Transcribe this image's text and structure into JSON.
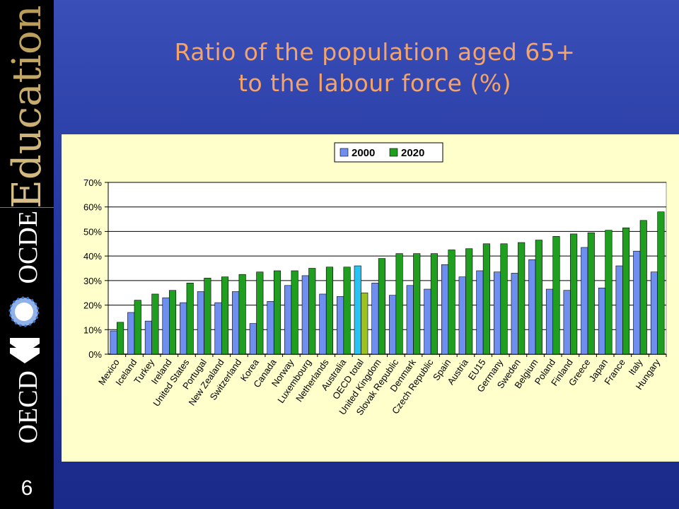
{
  "slide": {
    "number": "6",
    "title_line1": "Ratio of the population aged 65+",
    "title_line2": "to the labour force (%)"
  },
  "branding": {
    "education_text": "Education",
    "ocde_text": "OCDE",
    "oecd_text": "OECD",
    "icons": [
      "oecd-logo-circles-icon",
      "oecd-chevrons-icon"
    ]
  },
  "colors": {
    "bar_2000": "#6e8ff0",
    "bar_2020": "#1f9e1f",
    "highlight_2000": "#27c3f2",
    "highlight_2020": "#9bc21f",
    "title": "#f4a46a",
    "panel_bg": "#ffffcc"
  },
  "chart_data": {
    "type": "bar",
    "title": "",
    "xlabel": "",
    "ylabel": "",
    "ylim": [
      0,
      70
    ],
    "yticks": [
      "0%",
      "10%",
      "20%",
      "30%",
      "40%",
      "50%",
      "60%",
      "70%"
    ],
    "grid": "horizontal",
    "legend_position": "top-center",
    "highlight_category": "OECD total",
    "categories": [
      "Mexico",
      "Iceland",
      "Turkey",
      "Ireland",
      "United States",
      "Portugal",
      "New Zealand",
      "Switzerland",
      "Korea",
      "Canada",
      "Norway",
      "Luxembourg",
      "Netherlands",
      "Australia",
      "OECD total",
      "United Kingdom",
      "Slovak Republic",
      "Denmark",
      "Czech Republic",
      "Spain",
      "Austria",
      "EU15",
      "Germany",
      "Sweden",
      "Belgium",
      "Poland",
      "Finland",
      "Greece",
      "Japan",
      "France",
      "Italy",
      "Hungary"
    ],
    "series": [
      {
        "name": "2000",
        "values": [
          9.5,
          17,
          13.5,
          23,
          21,
          25.5,
          21,
          25.5,
          12.5,
          21.5,
          28,
          32,
          24.5,
          23.5,
          36,
          29,
          24,
          28,
          26.5,
          36.5,
          31.5,
          34,
          33.5,
          33,
          38.5,
          26.5,
          26,
          43.5,
          27,
          36,
          42,
          33.5
        ]
      },
      {
        "name": "2020",
        "values": [
          13,
          22,
          24.5,
          26,
          29,
          31,
          31.5,
          32.5,
          33.5,
          34,
          34,
          35,
          35.5,
          35.5,
          25,
          39,
          41,
          41,
          41,
          42.5,
          43,
          45,
          45,
          45.5,
          46.5,
          48,
          49,
          49.5,
          50.5,
          51.5,
          54.5,
          58
        ]
      }
    ]
  }
}
